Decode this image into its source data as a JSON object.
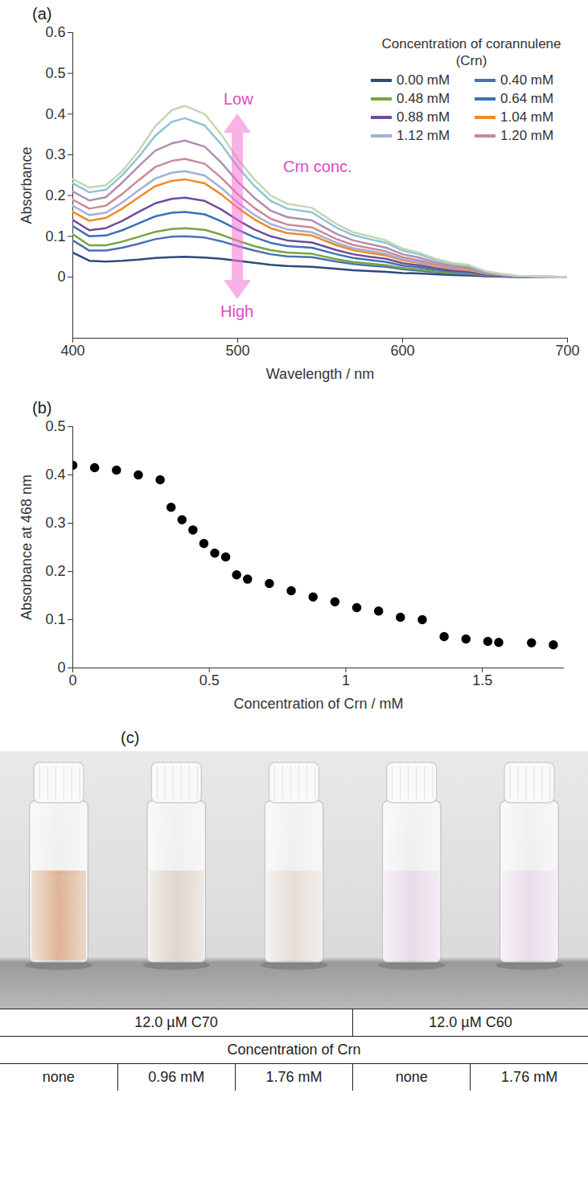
{
  "chart_data": [
    {
      "type": "line",
      "panel_label": "(a)",
      "x_label": "Wavelength / nm",
      "y_label": "Absorbance",
      "legend_title": "Concentration of corannulene (Crn)",
      "legend": "top-right",
      "grid": false,
      "annotations": {
        "low": "Low",
        "high": "High",
        "arrow_label": "Crn conc."
      },
      "xlim": [
        400,
        700
      ],
      "xticks": [
        400,
        500,
        600,
        700
      ],
      "ylim": [
        -0.15,
        0.6
      ],
      "yticks": [
        0,
        0.1,
        0.2,
        0.3,
        0.4,
        0.5,
        0.6
      ],
      "x": [
        400,
        410,
        420,
        430,
        440,
        450,
        460,
        468,
        480,
        490,
        500,
        510,
        520,
        530,
        545,
        560,
        570,
        580,
        590,
        600,
        610,
        620,
        630,
        640,
        650,
        660,
        670,
        680,
        690,
        700
      ],
      "series": [
        {
          "name": "0.00 mM",
          "color": "#2f4b7c",
          "values": [
            0.06,
            0.04,
            0.038,
            0.04,
            0.043,
            0.047,
            0.049,
            0.05,
            0.048,
            0.045,
            0.04,
            0.035,
            0.03,
            0.027,
            0.025,
            0.02,
            0.017,
            0.015,
            0.013,
            0.01,
            0.009,
            0.007,
            0.005,
            0.004,
            0.002,
            0.001,
            0,
            0,
            0,
            0
          ]
        },
        {
          "name": "0.40 mM",
          "color": "#4a72b0",
          "values": [
            0.09,
            0.065,
            0.065,
            0.072,
            0.082,
            0.093,
            0.099,
            0.1,
            0.097,
            0.088,
            0.076,
            0.065,
            0.056,
            0.051,
            0.049,
            0.038,
            0.032,
            0.028,
            0.025,
            0.019,
            0.016,
            0.012,
            0.009,
            0.007,
            0.004,
            0.002,
            0.001,
            0,
            0,
            0
          ]
        },
        {
          "name": "0.48 mM",
          "color": "#79a540",
          "values": [
            0.105,
            0.078,
            0.078,
            0.087,
            0.099,
            0.111,
            0.118,
            0.12,
            0.116,
            0.104,
            0.089,
            0.076,
            0.066,
            0.06,
            0.057,
            0.044,
            0.037,
            0.033,
            0.029,
            0.022,
            0.019,
            0.014,
            0.011,
            0.009,
            0.005,
            0.003,
            0.001,
            0.001,
            0,
            0
          ]
        },
        {
          "name": "0.64 mM",
          "color": "#3f70b8",
          "values": [
            0.125,
            0.1,
            0.102,
            0.115,
            0.132,
            0.149,
            0.158,
            0.16,
            0.154,
            0.137,
            0.116,
            0.098,
            0.084,
            0.076,
            0.072,
            0.056,
            0.047,
            0.042,
            0.037,
            0.028,
            0.024,
            0.018,
            0.014,
            0.012,
            0.006,
            0.003,
            0.001,
            0.001,
            0,
            0
          ]
        },
        {
          "name": "0.88 mM",
          "color": "#6f4d9b",
          "values": [
            0.14,
            0.115,
            0.12,
            0.138,
            0.16,
            0.181,
            0.192,
            0.195,
            0.187,
            0.166,
            0.14,
            0.117,
            0.1,
            0.09,
            0.085,
            0.066,
            0.056,
            0.05,
            0.045,
            0.034,
            0.029,
            0.022,
            0.017,
            0.014,
            0.007,
            0.004,
            0.001,
            0.001,
            0,
            0
          ]
        },
        {
          "name": "1.04 mM",
          "color": "#f08a24",
          "values": [
            0.16,
            0.138,
            0.145,
            0.168,
            0.196,
            0.223,
            0.236,
            0.24,
            0.23,
            0.203,
            0.17,
            0.142,
            0.12,
            0.108,
            0.102,
            0.078,
            0.066,
            0.059,
            0.053,
            0.041,
            0.035,
            0.026,
            0.02,
            0.017,
            0.009,
            0.005,
            0.002,
            0.001,
            0,
            0
          ]
        },
        {
          "name": "1.12 mM",
          "color": "#9fb1d8",
          "values": [
            0.175,
            0.152,
            0.158,
            0.183,
            0.213,
            0.242,
            0.256,
            0.26,
            0.249,
            0.219,
            0.183,
            0.153,
            0.13,
            0.117,
            0.11,
            0.084,
            0.071,
            0.064,
            0.057,
            0.044,
            0.037,
            0.028,
            0.022,
            0.018,
            0.009,
            0.005,
            0.002,
            0.001,
            0,
            0
          ]
        },
        {
          "name": "1.20 mM",
          "color": "#c98a96",
          "values": [
            0.19,
            0.168,
            0.175,
            0.204,
            0.238,
            0.27,
            0.285,
            0.29,
            0.278,
            0.244,
            0.203,
            0.17,
            0.143,
            0.129,
            0.122,
            0.093,
            0.079,
            0.071,
            0.063,
            0.049,
            0.041,
            0.031,
            0.024,
            0.02,
            0.01,
            0.006,
            0.002,
            0.001,
            0.001,
            0
          ]
        },
        {
          "color": "#b08fb0",
          "values": [
            0.21,
            0.188,
            0.196,
            0.232,
            0.272,
            0.31,
            0.328,
            0.335,
            0.32,
            0.281,
            0.234,
            0.195,
            0.163,
            0.147,
            0.139,
            0.106,
            0.09,
            0.081,
            0.072,
            0.056,
            0.048,
            0.036,
            0.028,
            0.024,
            0.012,
            0.006,
            0.002,
            0.002,
            0.001,
            0
          ]
        },
        {
          "color": "#8fc4d6",
          "values": [
            0.23,
            0.208,
            0.214,
            0.25,
            0.295,
            0.347,
            0.381,
            0.39,
            0.372,
            0.326,
            0.27,
            0.224,
            0.187,
            0.168,
            0.159,
            0.121,
            0.103,
            0.093,
            0.084,
            0.065,
            0.056,
            0.042,
            0.033,
            0.028,
            0.014,
            0.007,
            0.003,
            0.002,
            0.001,
            0
          ]
        },
        {
          "color": "#c5d7b5",
          "values": [
            0.24,
            0.22,
            0.225,
            0.26,
            0.31,
            0.37,
            0.41,
            0.42,
            0.4,
            0.35,
            0.29,
            0.24,
            0.2,
            0.18,
            0.17,
            0.13,
            0.11,
            0.1,
            0.09,
            0.07,
            0.06,
            0.045,
            0.035,
            0.03,
            0.015,
            0.008,
            0.003,
            0.002,
            0.001,
            0
          ]
        }
      ]
    },
    {
      "type": "scatter",
      "panel_label": "(b)",
      "x_label": "Concentration of Crn / mM",
      "y_label": "Absorbance at 468 nm",
      "grid": false,
      "marker": "circle",
      "color": "#000000",
      "xlim": [
        0,
        1.8
      ],
      "xticks": [
        0,
        0.5,
        1,
        1.5
      ],
      "ylim": [
        0,
        0.5
      ],
      "yticks": [
        0,
        0.1,
        0.2,
        0.3,
        0.4,
        0.5
      ],
      "x": [
        0,
        0.08,
        0.16,
        0.24,
        0.32,
        0.36,
        0.4,
        0.44,
        0.48,
        0.52,
        0.56,
        0.6,
        0.64,
        0.72,
        0.8,
        0.88,
        0.96,
        1.04,
        1.12,
        1.2,
        1.28,
        1.36,
        1.44,
        1.52,
        1.56,
        1.68,
        1.76
      ],
      "values": [
        0.42,
        0.415,
        0.41,
        0.4,
        0.39,
        0.333,
        0.307,
        0.286,
        0.258,
        0.238,
        0.23,
        0.193,
        0.184,
        0.175,
        0.16,
        0.147,
        0.137,
        0.125,
        0.118,
        0.105,
        0.1,
        0.065,
        0.06,
        0.055,
        0.053,
        0.052,
        0.048
      ]
    }
  ],
  "panel_c": {
    "panel_label": "(c)",
    "header": "Concentration of Crn",
    "groups": [
      {
        "label": "12.0 µM C70",
        "columns": [
          "none",
          "0.96 mM",
          "1.76 mM"
        ],
        "colors": [
          "#d49a70",
          "#d6c9bb",
          "#e0d3c9"
        ]
      },
      {
        "label": "12.0 µM C60",
        "columns": [
          "none",
          "1.76 mM"
        ],
        "colors": [
          "#e2cfe2",
          "#e6d2e6"
        ]
      }
    ]
  }
}
